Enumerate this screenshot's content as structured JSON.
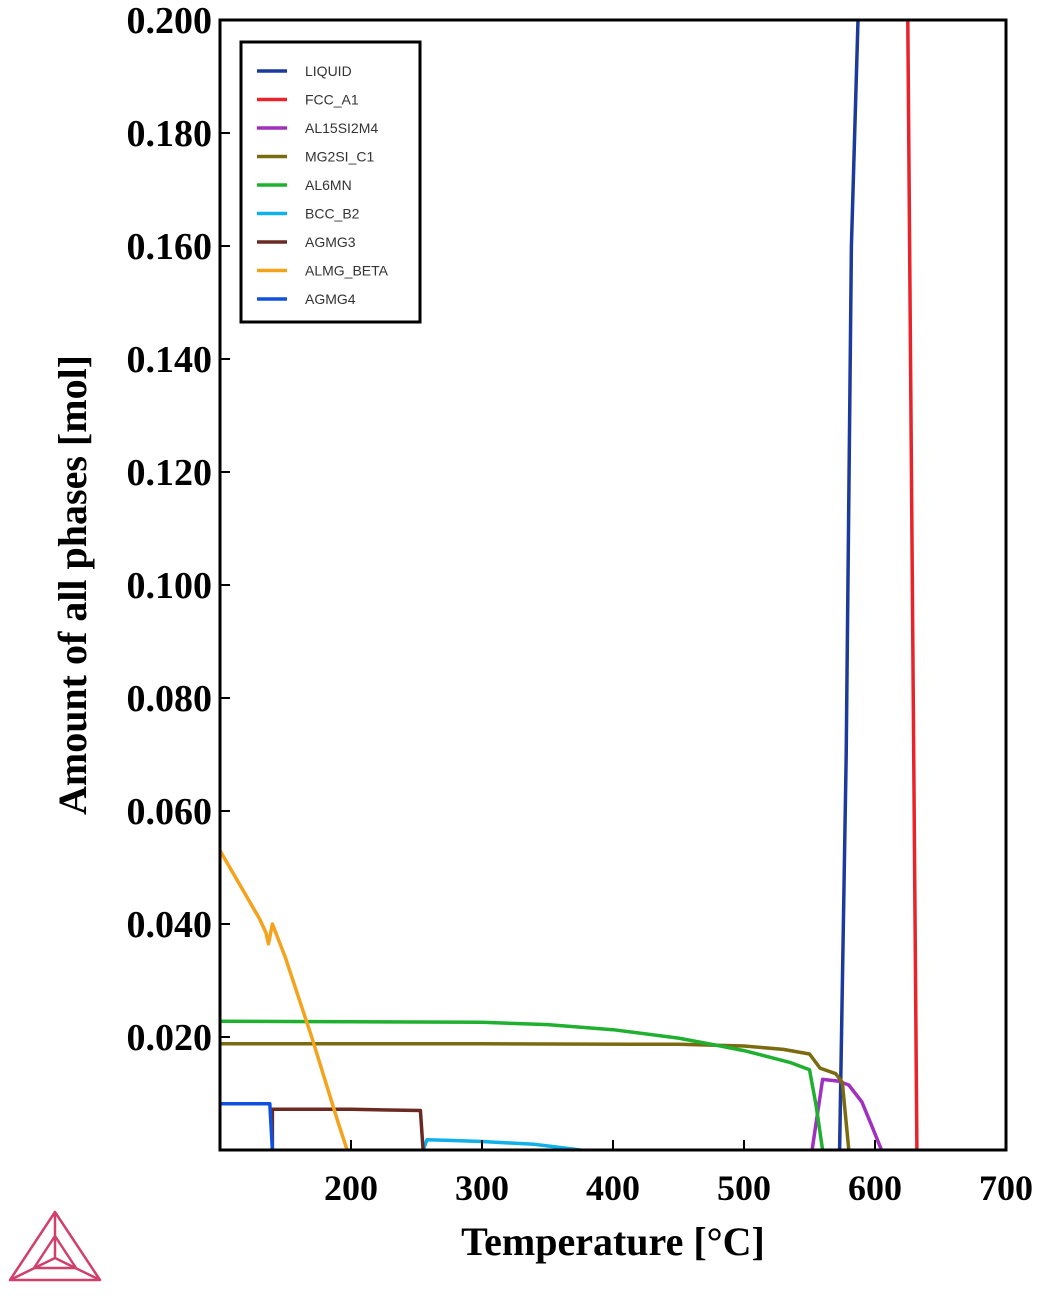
{
  "chart_data": {
    "type": "line",
    "title": "",
    "xlabel": "Temperature [°C]",
    "ylabel": "Amount of all phases [mol]",
    "xlim": [
      100,
      700
    ],
    "ylim": [
      0,
      0.2
    ],
    "x_ticks": [
      200,
      300,
      400,
      500,
      600,
      700
    ],
    "x_tick_labels": [
      "200",
      "300",
      "400",
      "500",
      "600",
      "700"
    ],
    "y_ticks": [
      0.02,
      0.04,
      0.06,
      0.08,
      0.1,
      0.12,
      0.14,
      0.16,
      0.18,
      0.2
    ],
    "y_tick_labels": [
      "0.020",
      "0.040",
      "0.060",
      "0.080",
      "0.100",
      "0.120",
      "0.140",
      "0.160",
      "0.180",
      "0.200"
    ],
    "grid": false,
    "legend_position": "top-left",
    "series": [
      {
        "name": "LIQUID",
        "color": "#1c3a9e",
        "points": [
          [
            573,
            0
          ],
          [
            578,
            0.07
          ],
          [
            582,
            0.16
          ],
          [
            587,
            0.2
          ]
        ]
      },
      {
        "name": "FCC_A1",
        "color": "#e8232a",
        "points": [
          [
            625,
            0.2
          ],
          [
            632,
            0
          ]
        ]
      },
      {
        "name": "AL15SI2M4",
        "color": "#a030c0",
        "points": [
          [
            552,
            0
          ],
          [
            560,
            0.0125
          ],
          [
            572,
            0.0122
          ],
          [
            580,
            0.0115
          ],
          [
            590,
            0.0085
          ],
          [
            598,
            0.004
          ],
          [
            605,
            0
          ]
        ]
      },
      {
        "name": "MG2SI_C1",
        "color": "#7a6a10",
        "points": [
          [
            100,
            0.0188
          ],
          [
            300,
            0.0188
          ],
          [
            450,
            0.0187
          ],
          [
            500,
            0.0184
          ],
          [
            530,
            0.0178
          ],
          [
            550,
            0.017
          ],
          [
            558,
            0.0145
          ],
          [
            570,
            0.0135
          ],
          [
            575,
            0.012
          ],
          [
            580,
            0
          ]
        ]
      },
      {
        "name": "AL6MN",
        "color": "#20b030",
        "points": [
          [
            100,
            0.0228
          ],
          [
            300,
            0.0226
          ],
          [
            350,
            0.0222
          ],
          [
            400,
            0.0213
          ],
          [
            450,
            0.0198
          ],
          [
            480,
            0.0185
          ],
          [
            500,
            0.0176
          ],
          [
            520,
            0.0164
          ],
          [
            535,
            0.0155
          ],
          [
            550,
            0.0142
          ],
          [
            555,
            0.008
          ],
          [
            560,
            0
          ]
        ]
      },
      {
        "name": "BCC_B2",
        "color": "#10b0e8",
        "points": [
          [
            255,
            0
          ],
          [
            258,
            0.0018
          ],
          [
            275,
            0.0017
          ],
          [
            300,
            0.0015
          ],
          [
            340,
            0.001
          ],
          [
            375,
            0
          ]
        ]
      },
      {
        "name": "AGMG3",
        "color": "#6a2a22",
        "points": [
          [
            140,
            0
          ],
          [
            140,
            0.0072
          ],
          [
            200,
            0.0072
          ],
          [
            253,
            0.007
          ],
          [
            255,
            0
          ]
        ]
      },
      {
        "name": "ALMG_BETA",
        "color": "#f5a21c",
        "points": [
          [
            100,
            0.053
          ],
          [
            110,
            0.049
          ],
          [
            120,
            0.045
          ],
          [
            130,
            0.041
          ],
          [
            135,
            0.0385
          ],
          [
            137,
            0.0365
          ],
          [
            140,
            0.04
          ],
          [
            150,
            0.034
          ],
          [
            160,
            0.027
          ],
          [
            170,
            0.02
          ],
          [
            180,
            0.0125
          ],
          [
            190,
            0.005
          ],
          [
            197,
            0
          ]
        ]
      },
      {
        "name": "AGMG4",
        "color": "#1050e0",
        "points": [
          [
            100,
            0.0082
          ],
          [
            138,
            0.0082
          ],
          [
            140,
            0
          ]
        ]
      }
    ]
  }
}
